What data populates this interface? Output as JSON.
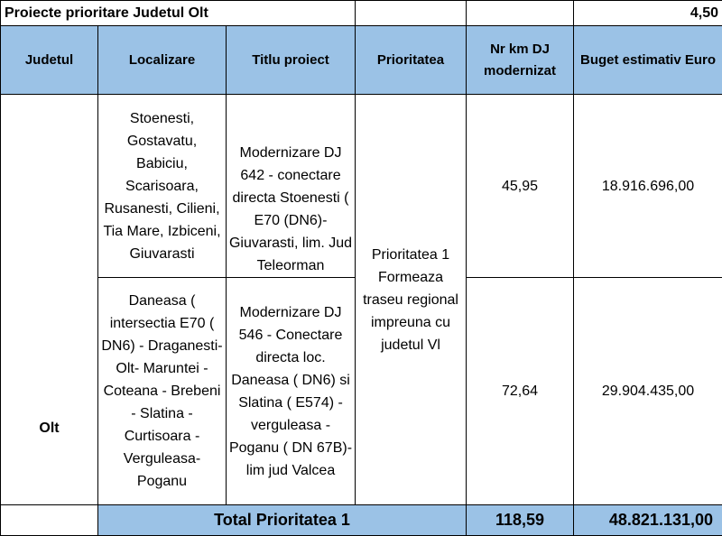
{
  "sheet": {
    "title": "Proiecte prioritare Judetul Olt",
    "title_value": "4,50"
  },
  "headers": {
    "county": "Judetul",
    "location": "Localizare",
    "project_title": "Titlu proiect",
    "priority": "Prioritatea",
    "km": "Nr km DJ modernizat",
    "budget": "Buget estimativ Euro"
  },
  "county": "Olt",
  "priority_text": "Prioritatea 1 Formeaza traseu regional impreuna cu judetul Vl",
  "rows": [
    {
      "location": "Stoenesti, Gostavatu, Babiciu, Scarisoara, Rusanesti, Cilieni, Tia Mare, Izbiceni, Giuvarasti",
      "project": "Modernizare DJ 642 - conectare directa Stoenesti ( E70 (DN6)- Giuvarasti, lim. Jud Teleorman",
      "km": "45,95",
      "budget": "18.916.696,00"
    },
    {
      "location": "Daneasa ( intersectia E70 ( DN6) - Draganesti- Olt- Maruntei - Coteana - Brebeni - Slatina - Curtisoara - Verguleasa- Poganu",
      "project": "Modernizare DJ 546 - Conectare directa loc. Daneasa ( DN6) si Slatina ( E574) - verguleasa - Poganu ( DN 67B)- lim jud Valcea",
      "km": "72,64",
      "budget": "29.904.435,00"
    }
  ],
  "total": {
    "label": "Total Prioritatea 1",
    "km": "118,59",
    "budget": "48.821.131,00"
  },
  "colors": {
    "header_fill": "#9bc2e6",
    "border": "#000000"
  }
}
